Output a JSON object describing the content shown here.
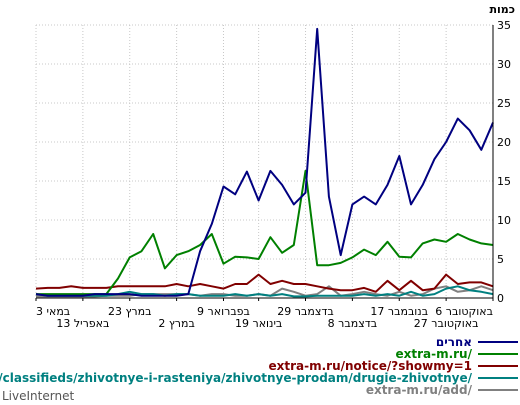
{
  "chart_data": {
    "type": "line",
    "ylabel": "כמות",
    "ylim": [
      0,
      35
    ],
    "yticks": [
      0,
      5,
      10,
      15,
      20,
      25,
      30,
      35
    ],
    "grid": true,
    "legend_position": "bottom-right",
    "x_tick_labels": [
      "6 באוקטובר",
      "27 באוקטובר",
      "17 בנובמבר",
      "8 בדצמבר",
      "29 בדצמבר",
      "19 בינואר",
      "9 בפברואר",
      "2 במרץ",
      "23 במרץ",
      "13 באפריל",
      "3 במאי"
    ],
    "n_points": 40,
    "series": [
      {
        "name": "אחרים",
        "color": "#000080",
        "values": [
          22.5,
          19,
          21.5,
          23,
          20,
          17.8,
          14.5,
          12,
          18.2,
          14.5,
          12,
          13,
          12,
          5.5,
          13,
          34.5,
          13.5,
          12,
          14.5,
          16.3,
          12.5,
          16.2,
          13.3,
          14.3,
          9.5,
          6,
          0.5,
          0.3,
          0.3,
          0.3,
          0.3,
          0.5,
          0.5,
          0.5,
          0.5,
          0.3,
          0.3,
          0.3,
          0.3,
          0.5
        ]
      },
      {
        "name": "extra-m.ru/",
        "color": "#008000",
        "values": [
          6.8,
          7,
          7.5,
          8.2,
          7.2,
          7.5,
          7,
          5.2,
          5.3,
          7.2,
          5.5,
          6.2,
          5.2,
          4.5,
          4.2,
          4.2,
          16.3,
          6.8,
          5.8,
          7.8,
          5,
          5.2,
          5.3,
          4.4,
          8.2,
          6.8,
          6,
          5.5,
          3.8,
          8.2,
          6,
          5.2,
          2.5,
          0.5,
          0.5,
          0.5,
          0.5,
          0.5,
          0.5,
          0.5
        ]
      },
      {
        "name": "extra-m.ru/notice/?showmy=1",
        "color": "#800000",
        "values": [
          1.5,
          2,
          2,
          1.8,
          3,
          1.2,
          1,
          2.2,
          1,
          2.2,
          0.8,
          1.3,
          1,
          1,
          1.2,
          1.5,
          1.8,
          1.8,
          2.2,
          1.8,
          3,
          1.8,
          1.8,
          1.2,
          1.5,
          1.8,
          1.5,
          1.8,
          1.5,
          1.5,
          1.5,
          1.5,
          1.5,
          1.3,
          1.3,
          1.3,
          1.5,
          1.3,
          1.3,
          1.2
        ]
      },
      {
        "name": "m.ru/classifieds/zhivotnye-i-rasteniya/zhivotnye-prodam/drugie-zhivotnye/",
        "color": "#008080",
        "values": [
          0.5,
          0.8,
          1,
          1.5,
          1.2,
          0.5,
          0.3,
          0.8,
          0.3,
          0.5,
          0.3,
          0.5,
          0.3,
          0.3,
          0.3,
          0.3,
          0.2,
          0.2,
          0.5,
          0.3,
          0.5,
          0.3,
          0.5,
          0.3,
          0.3,
          0.3,
          0.5,
          0.5,
          0.3,
          0.5,
          0.5,
          0.8,
          0.5,
          0.3,
          0.3,
          0.3,
          0.3,
          0.3,
          0.3,
          0.5
        ]
      },
      {
        "name": "extra-m.ru/add/",
        "color": "#808080",
        "values": [
          1,
          1.5,
          1,
          0.8,
          1.5,
          1.2,
          0.5,
          0.3,
          0.8,
          0.3,
          0.5,
          0.8,
          0.5,
          0.3,
          1.5,
          0.5,
          0.3,
          0.8,
          1.2,
          0.3,
          0.5,
          0.3,
          0.3,
          0.5,
          0.5,
          0.3,
          0.5,
          0.5,
          0.5,
          0.5,
          0.5,
          0.3,
          0.3,
          0.3,
          0.2,
          0.2,
          0.2,
          0.2,
          0.2,
          0.2
        ]
      }
    ],
    "watermark": "LiveInternet"
  }
}
